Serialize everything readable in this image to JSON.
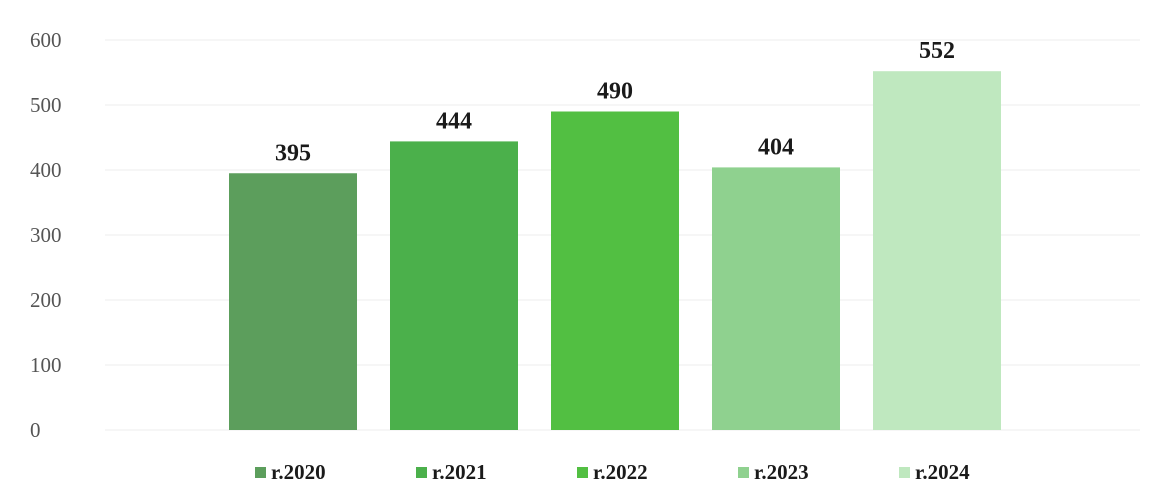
{
  "chart_data": {
    "type": "bar",
    "categories": [
      "r.2020",
      "r.2021",
      "r.2022",
      "r.2023",
      "r.2024"
    ],
    "values": [
      395,
      444,
      490,
      404,
      552
    ],
    "colors": [
      "#5c9e5c",
      "#4bb04b",
      "#52bf42",
      "#8fd18f",
      "#bfe8bf"
    ],
    "ylim": [
      0,
      600
    ],
    "yticks": [
      0,
      100,
      200,
      300,
      400,
      500,
      600
    ],
    "grid": true,
    "legend_position": "bottom",
    "data_labels": true
  }
}
